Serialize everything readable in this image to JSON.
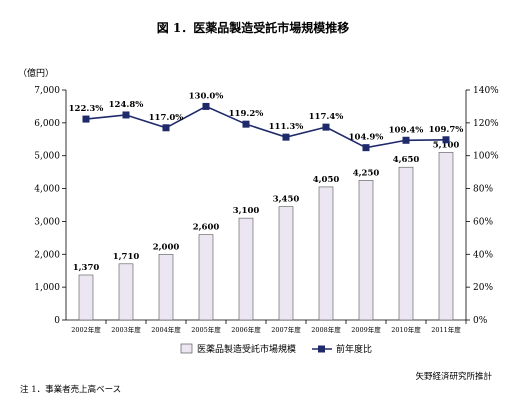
{
  "chart_data": {
    "type": "bar",
    "title": "図 1．医薬品製造受託市場規模推移",
    "y_unit_label": "（億円）",
    "categories": [
      "2002年度",
      "2003年度",
      "2004年度",
      "2005年度",
      "2006年度",
      "2007年度",
      "2008年度",
      "2009年度",
      "2010年度",
      "2011年度"
    ],
    "series": [
      {
        "name": "医薬品製造受託市場規模",
        "type": "bar",
        "axis": "left",
        "color": "#ece6f2",
        "values": [
          1370,
          1710,
          2000,
          2600,
          3100,
          3450,
          4050,
          4250,
          4650,
          5100
        ],
        "labels": [
          "1,370",
          "1,710",
          "2,000",
          "2,600",
          "3,100",
          "3,450",
          "4,050",
          "4,250",
          "4,650",
          "5,100"
        ]
      },
      {
        "name": "前年度比",
        "type": "line",
        "axis": "right",
        "color": "#1f2a6b",
        "values": [
          122.3,
          124.8,
          117.0,
          130.0,
          119.2,
          111.3,
          117.4,
          104.9,
          109.4,
          109.7
        ],
        "labels": [
          "122.3%",
          "124.8%",
          "117.0%",
          "130.0%",
          "119.2%",
          "111.3%",
          "117.4%",
          "104.9%",
          "109.4%",
          "109.7%"
        ]
      }
    ],
    "y_left": {
      "range": [
        0,
        7000
      ],
      "ticks": [
        0,
        1000,
        2000,
        3000,
        4000,
        5000,
        6000,
        7000
      ],
      "tick_labels": [
        "0",
        "1,000",
        "2,000",
        "3,000",
        "4,000",
        "5,000",
        "6,000",
        "7,000"
      ]
    },
    "y_right": {
      "range": [
        0,
        140
      ],
      "ticks": [
        0,
        20,
        40,
        60,
        80,
        100,
        120,
        140
      ],
      "tick_labels": [
        "0%",
        "20%",
        "40%",
        "60%",
        "80%",
        "100%",
        "120%",
        "140%"
      ]
    },
    "grid": false,
    "legend_position": "bottom",
    "source": "矢野経済研究所推計",
    "note": "注 1．事業者売上高ベース"
  }
}
